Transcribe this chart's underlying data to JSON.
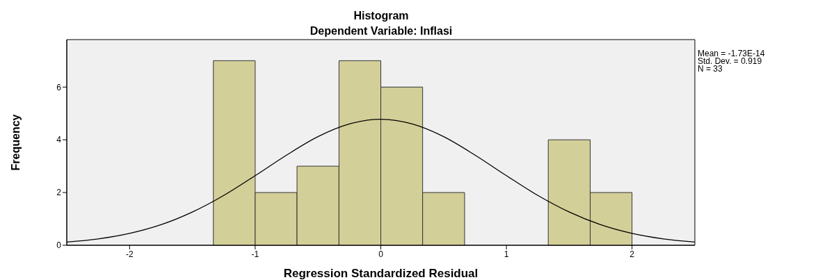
{
  "chart_data": {
    "type": "histogram",
    "title": "Histogram",
    "subtitle": "Dependent Variable: Inflasi",
    "xlabel": "Regression Standardized Residual",
    "ylabel": "Frequency",
    "bins": [
      -1.333,
      -1,
      -0.667,
      -0.333,
      0,
      0.333,
      0.667,
      1,
      1.333,
      1.667,
      2
    ],
    "values": [
      7,
      2,
      3,
      7,
      6,
      2,
      0,
      0,
      4,
      2
    ],
    "color": "#d3cf98",
    "series": [
      {
        "type": "line",
        "color": "#000000",
        "x": [
          -2.5,
          -2.25,
          -2,
          -1.75,
          -1.5,
          -1.25,
          -1,
          -0.75,
          -0.5,
          -0.25,
          0,
          0.25,
          0.5,
          0.75,
          1,
          1.25,
          1.5,
          1.75,
          2,
          2.25,
          2.5
        ],
        "values": [
          0.12,
          0.24,
          0.45,
          0.78,
          1.26,
          1.89,
          2.64,
          3.42,
          4.12,
          4.6,
          4.78,
          4.6,
          4.12,
          3.42,
          2.64,
          1.89,
          1.26,
          0.78,
          0.45,
          0.24,
          0.12
        ]
      }
    ],
    "xlim": [
      -2.5,
      2.5
    ],
    "xticks": [
      -2,
      -1,
      0,
      1,
      2
    ],
    "ylim": [
      0,
      7.8
    ],
    "yticks": [
      0,
      2,
      4,
      6
    ],
    "grid": false,
    "marker": "none",
    "line_style": "solid",
    "annotations": [
      "Mean = -1.73E-14",
      "Std. Dev. = 0.919",
      "N = 33"
    ]
  }
}
